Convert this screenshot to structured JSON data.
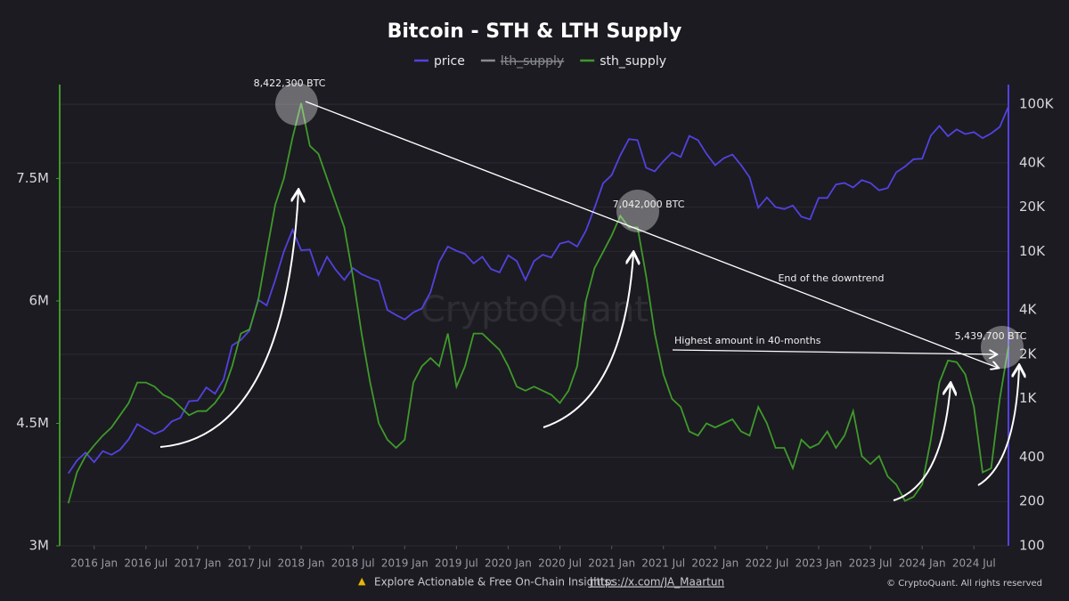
{
  "chart_data": {
    "type": "line",
    "title": "Bitcoin - STH & LTH Supply",
    "x": [
      "2015 Oct",
      "2015 Nov",
      "2015 Dec",
      "2016 Jan",
      "2016 Feb",
      "2016 Mar",
      "2016 Apr",
      "2016 May",
      "2016 Jun",
      "2016 Jul",
      "2016 Aug",
      "2016 Sep",
      "2016 Oct",
      "2016 Nov",
      "2016 Dec",
      "2017 Jan",
      "2017 Feb",
      "2017 Mar",
      "2017 Apr",
      "2017 May",
      "2017 Jun",
      "2017 Jul",
      "2017 Aug",
      "2017 Sep",
      "2017 Oct",
      "2017 Nov",
      "2017 Dec",
      "2018 Jan",
      "2018 Feb",
      "2018 Mar",
      "2018 Apr",
      "2018 May",
      "2018 Jun",
      "2018 Jul",
      "2018 Aug",
      "2018 Sep",
      "2018 Oct",
      "2018 Nov",
      "2018 Dec",
      "2019 Jan",
      "2019 Feb",
      "2019 Mar",
      "2019 Apr",
      "2019 May",
      "2019 Jun",
      "2019 Jul",
      "2019 Aug",
      "2019 Sep",
      "2019 Oct",
      "2019 Nov",
      "2019 Dec",
      "2020 Jan",
      "2020 Feb",
      "2020 Mar",
      "2020 Apr",
      "2020 May",
      "2020 Jun",
      "2020 Jul",
      "2020 Aug",
      "2020 Sep",
      "2020 Oct",
      "2020 Nov",
      "2020 Dec",
      "2021 Jan",
      "2021 Feb",
      "2021 Mar",
      "2021 Apr",
      "2021 May",
      "2021 Jun",
      "2021 Jul",
      "2021 Aug",
      "2021 Sep",
      "2021 Oct",
      "2021 Nov",
      "2021 Dec",
      "2022 Jan",
      "2022 Feb",
      "2022 Mar",
      "2022 Apr",
      "2022 May",
      "2022 Jun",
      "2022 Jul",
      "2022 Aug",
      "2022 Sep",
      "2022 Oct",
      "2022 Nov",
      "2022 Dec",
      "2023 Jan",
      "2023 Feb",
      "2023 Mar",
      "2023 Apr",
      "2023 May",
      "2023 Jun",
      "2023 Jul",
      "2023 Aug",
      "2023 Sep",
      "2023 Oct",
      "2023 Nov",
      "2023 Dec",
      "2024 Jan",
      "2024 Feb",
      "2024 Mar",
      "2024 Apr",
      "2024 May",
      "2024 Jun",
      "2024 Jul",
      "2024 Aug",
      "2024 Sep",
      "2024 Oct",
      "2024 Nov"
    ],
    "series": [
      {
        "name": "price",
        "color": "#5142e0",
        "axis": "y2",
        "values": [
          310,
          380,
          430,
          370,
          440,
          415,
          450,
          530,
          670,
          620,
          575,
          610,
          700,
          740,
          960,
          970,
          1190,
          1080,
          1350,
          2300,
          2500,
          2900,
          4700,
          4300,
          6400,
          10000,
          14000,
          10200,
          10300,
          6900,
          9200,
          7500,
          6400,
          7700,
          7000,
          6600,
          6300,
          4000,
          3700,
          3450,
          3850,
          4100,
          5300,
          8500,
          10800,
          10100,
          9600,
          8300,
          9200,
          7600,
          7200,
          9400,
          8600,
          6400,
          8600,
          9500,
          9100,
          11300,
          11700,
          10800,
          13800,
          19700,
          29000,
          33000,
          45000,
          58000,
          57000,
          37000,
          35000,
          41000,
          47000,
          43800,
          61000,
          57000,
          46000,
          38500,
          43000,
          45500,
          38600,
          31800,
          19800,
          23300,
          20000,
          19400,
          20500,
          17200,
          16500,
          23100,
          23100,
          28500,
          29200,
          27200,
          30500,
          29200,
          26000,
          27000,
          34500,
          37700,
          42300,
          42600,
          61200,
          71300,
          60600,
          67500,
          62700,
          64600,
          58900,
          63300,
          70200,
          96400
        ]
      },
      {
        "name": "lth_supply",
        "color": "#8a8a92",
        "hidden": true
      },
      {
        "name": "sth_supply",
        "color": "#3f9a2b",
        "values": [
          3520000,
          3900000,
          4100000,
          4230000,
          4350000,
          4450000,
          4600000,
          4750000,
          5000000,
          5000000,
          4950000,
          4850000,
          4800000,
          4700000,
          4600000,
          4650000,
          4650000,
          4750000,
          4900000,
          5200000,
          5600000,
          5650000,
          6000000,
          6600000,
          7180000,
          7500000,
          8000000,
          8422300,
          7900000,
          7800000,
          7500000,
          7200000,
          6900000,
          6300000,
          5600000,
          5000000,
          4500000,
          4300000,
          4200000,
          4300000,
          5000000,
          5200000,
          5300000,
          5200000,
          5600000,
          4950000,
          5200000,
          5600000,
          5600000,
          5500000,
          5400000,
          5200000,
          4950000,
          4900000,
          4950000,
          4900000,
          4850000,
          4750000,
          4900000,
          5200000,
          6000000,
          6400000,
          6600000,
          6800000,
          7042000,
          6900000,
          6900000,
          6300000,
          5600000,
          5100000,
          4800000,
          4700000,
          4400000,
          4350000,
          4500000,
          4450000,
          4500000,
          4550000,
          4400000,
          4350000,
          4700000,
          4500000,
          4200000,
          4200000,
          3950000,
          4300000,
          4200000,
          4250000,
          4400000,
          4200000,
          4350000,
          4650000,
          4100000,
          4000000,
          4100000,
          3850000,
          3750000,
          3550000,
          3600000,
          3750000,
          4300000,
          5000000,
          5270000,
          5250000,
          5100000,
          4700000,
          3900000,
          3950000,
          4800000,
          5439700
        ]
      }
    ],
    "xlim": [
      "2015 Sep",
      "2024 Nov"
    ],
    "xticks": [
      "2016 Jan",
      "2016 Jul",
      "2017 Jan",
      "2017 Jul",
      "2018 Jan",
      "2018 Jul",
      "2019 Jan",
      "2019 Jul",
      "2020 Jan",
      "2020 Jul",
      "2021 Jan",
      "2021 Jul",
      "2022 Jan",
      "2022 Jul",
      "2023 Jan",
      "2023 Jul",
      "2024 Jan",
      "2024 Jul"
    ],
    "ylim": [
      3000000,
      8650000
    ],
    "yticks": [
      {
        "value": 3000000,
        "label": "3M"
      },
      {
        "value": 4500000,
        "label": "4.5M"
      },
      {
        "value": 6000000,
        "label": "6M"
      },
      {
        "value": 7500000,
        "label": "7.5M"
      }
    ],
    "y2lim": [
      100,
      136000
    ],
    "y2_log": true,
    "y2ticks": [
      100,
      200,
      400,
      {
        "value": 1000,
        "label": "1K"
      },
      {
        "value": 2000,
        "label": "2K"
      },
      {
        "value": 4000,
        "label": "4K"
      },
      {
        "value": 10000,
        "label": "10K"
      },
      {
        "value": 20000,
        "label": "20K"
      },
      {
        "value": 40000,
        "label": "40K"
      },
      {
        "value": 100000,
        "label": "100K"
      }
    ],
    "grid": true,
    "watermark": "CryptoQuant",
    "annotations": [
      "8,422,300 BTC",
      "7,042,000 BTC",
      "5,439,700 BTC",
      "End of the downtrend",
      "Highest amount in 40-months"
    ],
    "footer": {
      "text": "Explore Actionable & Free On-Chain Insights: ",
      "link": "https://x.com/JA_Maartun",
      "copyright": "© CryptoQuant. All rights reserved"
    }
  }
}
